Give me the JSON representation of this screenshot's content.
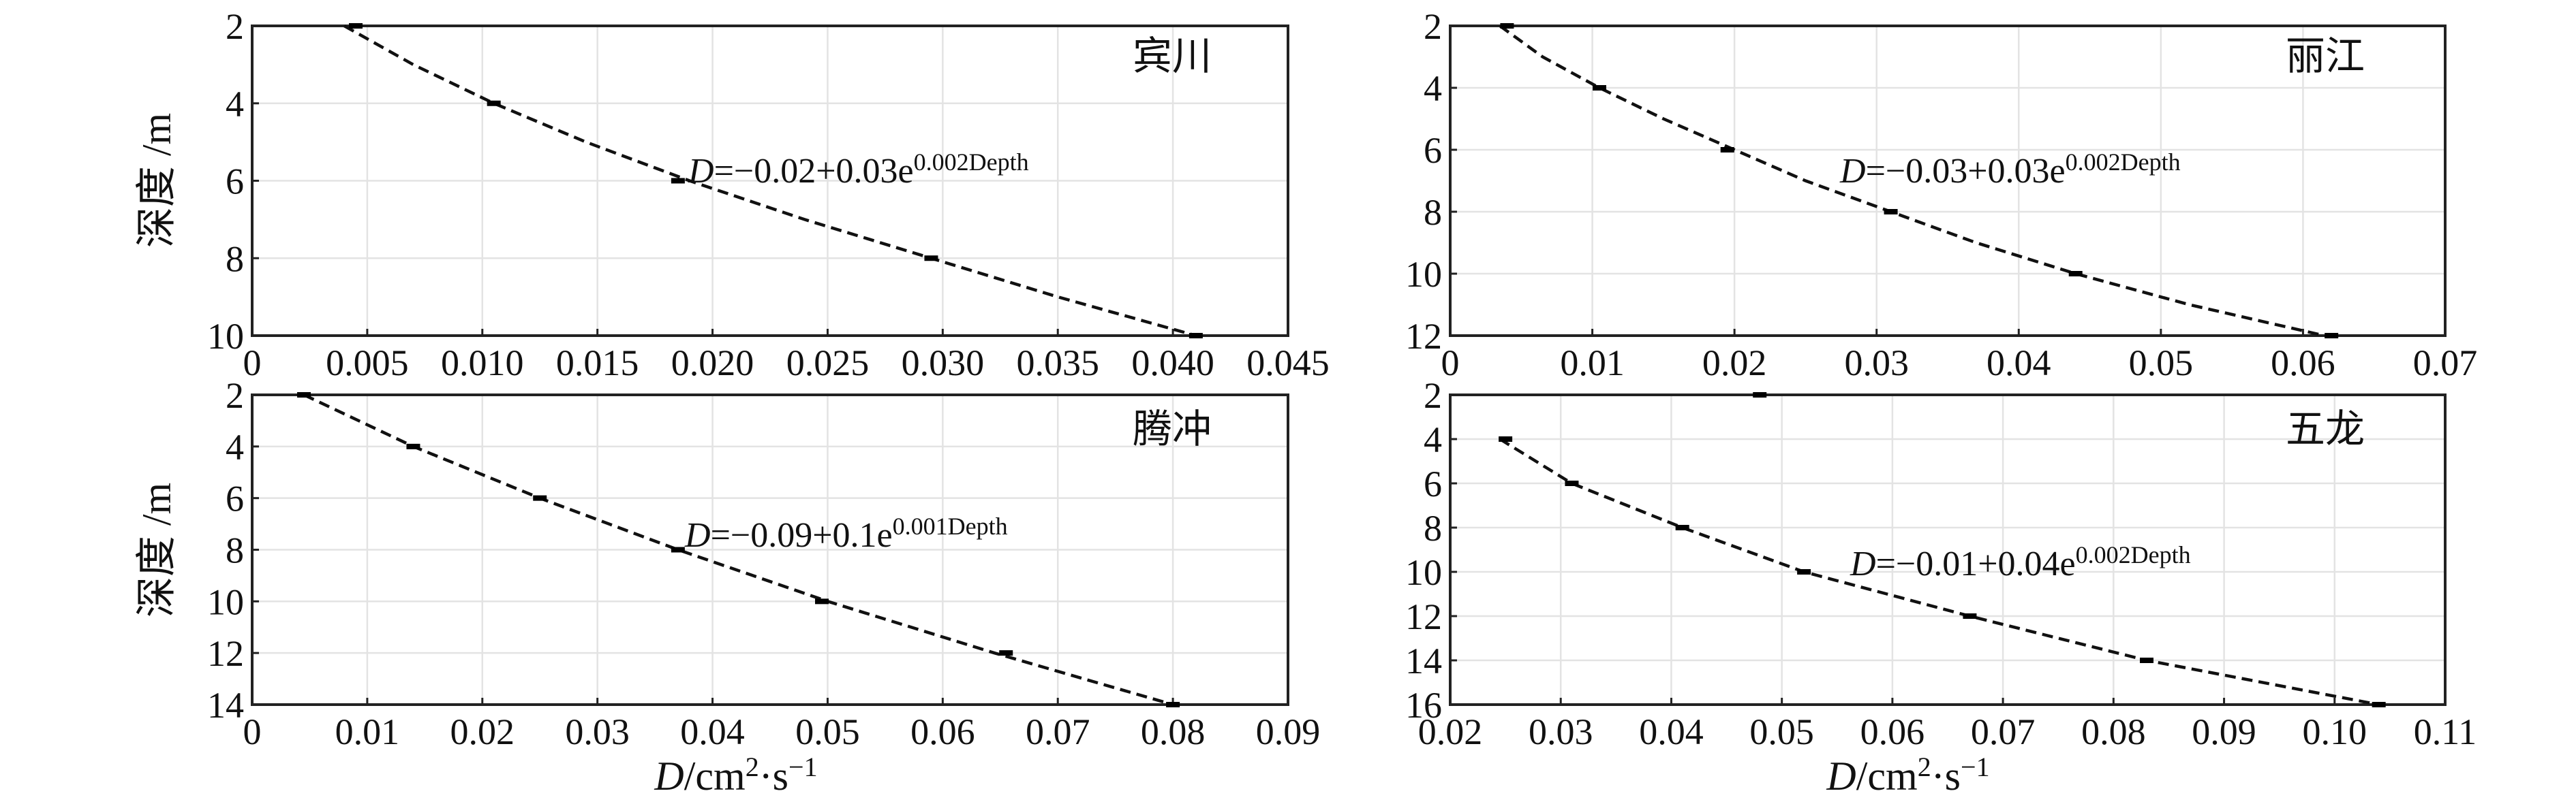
{
  "chart_data": [
    {
      "type": "line",
      "site": "宾川",
      "equation": {
        "lhs": "D",
        "rhs": "=−0.02+0.03e",
        "exp": "0.002Depth"
      },
      "xlabel": "",
      "ylabel": "深度 /m",
      "xlim": [
        0,
        0.045
      ],
      "ylim": [
        2,
        10
      ],
      "y_inverted": true,
      "grid": true,
      "xticks": [
        "0",
        "0.005",
        "0.010",
        "0.015",
        "0.020",
        "0.025",
        "0.030",
        "0.035",
        "0.040",
        "0.045"
      ],
      "xtick_values": [
        0,
        0.005,
        0.01,
        0.015,
        0.02,
        0.025,
        0.03,
        0.035,
        0.04,
        0.045
      ],
      "yticks": [
        "2",
        "4",
        "6",
        "8",
        "10"
      ],
      "ytick_values": [
        2,
        4,
        6,
        8,
        10
      ],
      "series": [
        {
          "role": "measured",
          "x": [
            0.0045,
            0.0105,
            0.0185,
            0.0295,
            0.041
          ],
          "y": [
            2,
            4,
            6,
            8,
            10
          ]
        },
        {
          "role": "fit",
          "x": [
            0.004,
            0.007,
            0.0105,
            0.0145,
            0.019,
            0.024,
            0.0295,
            0.035,
            0.041
          ],
          "y": [
            2,
            3,
            4,
            5,
            6,
            7,
            8,
            9,
            10
          ]
        }
      ]
    },
    {
      "type": "line",
      "site": "丽江",
      "equation": {
        "lhs": "D",
        "rhs": "=−0.03+0.03e",
        "exp": "0.002Depth"
      },
      "xlabel": "",
      "ylabel": "",
      "xlim": [
        0,
        0.07
      ],
      "ylim": [
        2,
        12
      ],
      "y_inverted": true,
      "grid": true,
      "xticks": [
        "0",
        "0.01",
        "0.02",
        "0.03",
        "0.04",
        "0.05",
        "0.06",
        "0.07"
      ],
      "xtick_values": [
        0,
        0.01,
        0.02,
        0.03,
        0.04,
        0.05,
        0.06,
        0.07
      ],
      "yticks": [
        "2",
        "4",
        "6",
        "8",
        "10",
        "12"
      ],
      "ytick_values": [
        2,
        4,
        6,
        8,
        10,
        12
      ],
      "series": [
        {
          "role": "measured",
          "x": [
            0.004,
            0.0105,
            0.0195,
            0.031,
            0.044,
            0.062
          ],
          "y": [
            2,
            4,
            6,
            8,
            10,
            12
          ]
        },
        {
          "role": "fit",
          "x": [
            0.0035,
            0.0065,
            0.0105,
            0.015,
            0.02,
            0.025,
            0.031,
            0.037,
            0.044,
            0.052,
            0.0615
          ],
          "y": [
            2,
            3,
            4,
            5,
            6,
            7,
            8,
            9,
            10,
            11,
            12
          ]
        }
      ]
    },
    {
      "type": "line",
      "site": "腾冲",
      "equation": {
        "lhs": "D",
        "rhs": "=−0.09+0.1e",
        "exp": "0.001Depth"
      },
      "xlabel": "D/cm²·s⁻¹",
      "xlabel_parts": {
        "italic": "D",
        "unit": "/cm",
        "sup1": "2",
        "mid": "·s",
        "sup2": "−1"
      },
      "ylabel": "深度 /m",
      "xlim": [
        0,
        0.09
      ],
      "ylim": [
        2,
        14
      ],
      "y_inverted": true,
      "grid": true,
      "xticks": [
        "0",
        "0.01",
        "0.02",
        "0.03",
        "0.04",
        "0.05",
        "0.06",
        "0.07",
        "0.08",
        "0.09"
      ],
      "xtick_values": [
        0,
        0.01,
        0.02,
        0.03,
        0.04,
        0.05,
        0.06,
        0.07,
        0.08,
        0.09
      ],
      "yticks": [
        "2",
        "4",
        "6",
        "8",
        "10",
        "12",
        "14"
      ],
      "ytick_values": [
        2,
        4,
        6,
        8,
        10,
        12,
        14
      ],
      "series": [
        {
          "role": "measured",
          "x": [
            0.0045,
            0.014,
            0.025,
            0.037,
            0.0495,
            0.0655,
            0.08
          ],
          "y": [
            2,
            4,
            6,
            8,
            10,
            12,
            14
          ]
        },
        {
          "role": "fit",
          "x": [
            0.0045,
            0.014,
            0.025,
            0.037,
            0.05,
            0.0645,
            0.08
          ],
          "y": [
            2,
            4,
            6,
            8,
            10,
            12,
            14
          ]
        }
      ]
    },
    {
      "type": "line",
      "site": "五龙",
      "equation": {
        "lhs": "D",
        "rhs": "=−0.01+0.04e",
        "exp": "0.002Depth"
      },
      "xlabel": "D/cm²·s⁻¹",
      "xlabel_parts": {
        "italic": "D",
        "unit": "/cm",
        "sup1": "2",
        "mid": "·s",
        "sup2": "−1"
      },
      "ylabel": "",
      "xlim": [
        0.02,
        0.11
      ],
      "ylim": [
        2,
        16
      ],
      "y_inverted": true,
      "grid": true,
      "xticks": [
        "0.02",
        "0.03",
        "0.04",
        "0.05",
        "0.06",
        "0.07",
        "0.08",
        "0.09",
        "0.10",
        "0.11"
      ],
      "xtick_values": [
        0.02,
        0.03,
        0.04,
        0.05,
        0.06,
        0.07,
        0.08,
        0.09,
        0.1,
        0.11
      ],
      "yticks": [
        "2",
        "4",
        "6",
        "8",
        "10",
        "12",
        "14",
        "16"
      ],
      "ytick_values": [
        2,
        4,
        6,
        8,
        10,
        12,
        14,
        16
      ],
      "series": [
        {
          "role": "measured",
          "x": [
            0.048,
            0.025,
            0.031,
            0.041,
            0.052,
            0.067,
            0.083,
            0.104
          ],
          "y": [
            2,
            4,
            6,
            8,
            10,
            12,
            14,
            16
          ]
        },
        {
          "role": "fit",
          "x": [
            0.0245,
            0.031,
            0.041,
            0.052,
            0.0595,
            0.067,
            0.083,
            0.104
          ],
          "y": [
            4,
            6,
            8,
            10,
            11,
            12,
            14,
            16
          ]
        }
      ]
    }
  ]
}
